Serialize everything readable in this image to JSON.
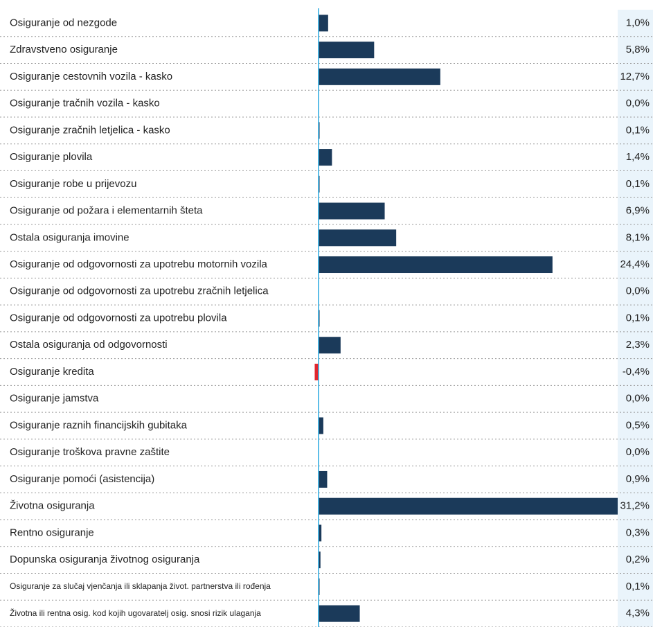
{
  "chart_data": {
    "type": "bar",
    "orientation": "horizontal",
    "categories": [
      "Osiguranje od nezgode",
      "Zdravstveno osiguranje",
      "Osiguranje cestovnih vozila - kasko",
      "Osiguranje tračnih vozila - kasko",
      "Osiguranje zračnih letjelica - kasko",
      "Osiguranje plovila",
      "Osiguranje robe u prijevozu",
      "Osiguranje od požara i elementarnih šteta",
      "Ostala osiguranja imovine",
      "Osiguranje od odgovornosti za upotrebu motornih vozila",
      "Osiguranje od odgovornosti za upotrebu zračnih letjelica",
      "Osiguranje od odgovornosti za upotrebu plovila",
      "Ostala osiguranja od odgovornosti",
      "Osiguranje kredita",
      "Osiguranje jamstva",
      "Osiguranje raznih financijskih gubitaka",
      "Osiguranje troškova pravne zaštite",
      "Osiguranje pomoći (asistencija)",
      "Životna osiguranja",
      "Rentno osiguranje",
      "Dopunska osiguranja životnog osiguranja",
      "Osiguranje za slučaj vjenčanja ili sklapanja život. partnerstva ili rođenja",
      "Životna ili rentna osig. kod kojih ugovaratelj osig. snosi rizik ulaganja"
    ],
    "values": [
      1.0,
      5.8,
      12.7,
      0.0,
      0.1,
      1.4,
      0.1,
      6.9,
      8.1,
      24.4,
      0.0,
      0.1,
      2.3,
      -0.4,
      0.0,
      0.5,
      0.0,
      0.9,
      31.2,
      0.3,
      0.2,
      0.1,
      4.3
    ],
    "value_labels": [
      "1,0%",
      "5,8%",
      "12,7%",
      "0,0%",
      "0,1%",
      "1,4%",
      "0,1%",
      "6,9%",
      "8,1%",
      "24,4%",
      "0,0%",
      "0,1%",
      "2,3%",
      "-0,4%",
      "0,0%",
      "0,5%",
      "0,0%",
      "0,9%",
      "31,2%",
      "0,3%",
      "0,2%",
      "0,1%",
      "4,3%"
    ],
    "color": "#1b3a5a",
    "negative_color": "#e0262e"
  }
}
